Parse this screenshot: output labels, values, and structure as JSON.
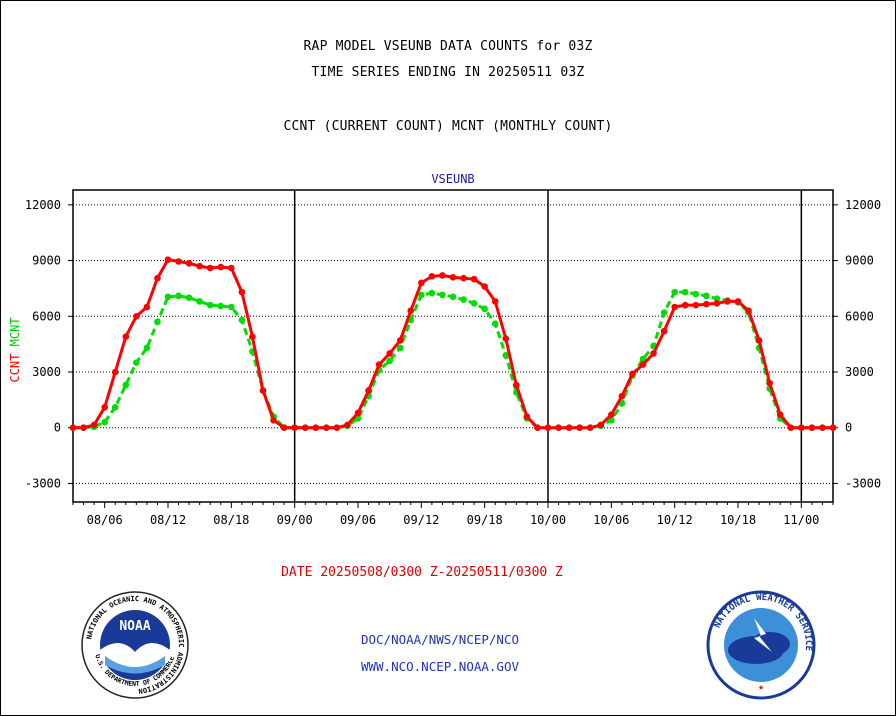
{
  "titles": {
    "line1": "RAP MODEL VSEUNB DATA COUNTS for 03Z",
    "line2": "TIME SERIES ENDING IN 20250511 03Z",
    "line3": "CCNT (CURRENT COUNT) MCNT (MONTHLY COUNT)"
  },
  "date_range": "DATE 20250508/0300 Z-20250511/0300 Z",
  "footer": {
    "line1": "DOC/NOAA/NWS/NCEP/NCO",
    "line2": "WWW.NCO.NCEP.NOAA.GOV"
  },
  "logos": {
    "noaa": {
      "center_text": "NOAA",
      "ring_text": "NATIONAL OCEANIC AND ATMOSPHERIC ADMINISTRATION",
      "bottom_text": "U.S. DEPARTMENT OF COMMERCE"
    },
    "nws": {
      "ring_text": "NATIONAL WEATHER SERVICE"
    }
  },
  "chart_data": {
    "type": "line",
    "title": "VSEUNB",
    "ylabel_parts": [
      {
        "text": "CCNT",
        "color": "#ff0000"
      },
      {
        "text": "MCNT",
        "color": "#00cc00"
      }
    ],
    "ylim": [
      -4000,
      12800
    ],
    "yticks": [
      -3000,
      0,
      3000,
      6000,
      9000,
      12000
    ],
    "yticks_right": [
      -3000,
      0,
      3000,
      6000,
      9000,
      12000
    ],
    "x_range": [
      0,
      72
    ],
    "xticks": [
      {
        "x": 3,
        "label": "08/06"
      },
      {
        "x": 9,
        "label": "08/12"
      },
      {
        "x": 15,
        "label": "08/18"
      },
      {
        "x": 21,
        "label": "09/00"
      },
      {
        "x": 27,
        "label": "09/06"
      },
      {
        "x": 33,
        "label": "09/12"
      },
      {
        "x": 39,
        "label": "09/18"
      },
      {
        "x": 45,
        "label": "10/00"
      },
      {
        "x": 51,
        "label": "10/06"
      },
      {
        "x": 57,
        "label": "10/12"
      },
      {
        "x": 63,
        "label": "10/18"
      },
      {
        "x": 69,
        "label": "11/00"
      }
    ],
    "day_boundaries": [
      21,
      45,
      69
    ],
    "grid": "horizontal dotted",
    "series": [
      {
        "name": "CCNT",
        "color": "#ff0000",
        "x": [
          0,
          1,
          2,
          3,
          4,
          5,
          6,
          7,
          8,
          9,
          10,
          11,
          12,
          13,
          14,
          15,
          16,
          17,
          18,
          19,
          20,
          21,
          22,
          23,
          24,
          25,
          26,
          27,
          28,
          29,
          30,
          31,
          32,
          33,
          34,
          35,
          36,
          37,
          38,
          39,
          40,
          41,
          42,
          43,
          44,
          45,
          46,
          47,
          48,
          49,
          50,
          51,
          52,
          53,
          54,
          55,
          56,
          57,
          58,
          59,
          60,
          61,
          62,
          63,
          64,
          65,
          66,
          67,
          68,
          69,
          70,
          71,
          72
        ],
        "values": [
          0,
          0,
          150,
          1100,
          3000,
          4900,
          6000,
          6500,
          8050,
          9050,
          8950,
          8850,
          8700,
          8600,
          8650,
          8600,
          7300,
          4900,
          2000,
          400,
          0,
          0,
          0,
          0,
          0,
          0,
          150,
          800,
          2000,
          3400,
          4000,
          4700,
          6300,
          7800,
          8150,
          8200,
          8100,
          8050,
          8000,
          7600,
          6800,
          4800,
          2300,
          600,
          0,
          0,
          0,
          0,
          0,
          0,
          150,
          700,
          1700,
          2900,
          3400,
          4000,
          5200,
          6500,
          6600,
          6600,
          6650,
          6700,
          6800,
          6800,
          6300,
          4700,
          2400,
          700,
          0,
          0,
          0,
          0,
          0
        ]
      },
      {
        "name": "MCNT",
        "color": "#00dd00",
        "x": [
          0,
          1,
          2,
          3,
          4,
          5,
          6,
          7,
          8,
          9,
          10,
          11,
          12,
          13,
          14,
          15,
          16,
          17,
          18,
          19,
          20,
          21,
          22,
          23,
          24,
          25,
          26,
          27,
          28,
          29,
          30,
          31,
          32,
          33,
          34,
          35,
          36,
          37,
          38,
          39,
          40,
          41,
          42,
          43,
          44,
          45,
          46,
          47,
          48,
          49,
          50,
          51,
          52,
          53,
          54,
          55,
          56,
          57,
          58,
          59,
          60,
          61,
          62,
          63,
          64,
          65,
          66,
          67,
          68,
          69,
          70,
          71,
          72
        ],
        "values": [
          0,
          0,
          50,
          300,
          1100,
          2300,
          3500,
          4300,
          5700,
          7050,
          7100,
          7000,
          6800,
          6600,
          6550,
          6500,
          5800,
          4100,
          2000,
          600,
          0,
          0,
          0,
          0,
          0,
          0,
          100,
          500,
          1700,
          3100,
          3600,
          4300,
          5800,
          7150,
          7250,
          7150,
          7050,
          6900,
          6700,
          6400,
          5600,
          3900,
          1900,
          500,
          0,
          0,
          0,
          0,
          0,
          0,
          100,
          400,
          1300,
          2800,
          3700,
          4400,
          6200,
          7300,
          7300,
          7200,
          7100,
          6950,
          6850,
          6750,
          6200,
          4300,
          2100,
          500,
          0,
          0,
          0,
          0,
          0
        ]
      }
    ]
  }
}
